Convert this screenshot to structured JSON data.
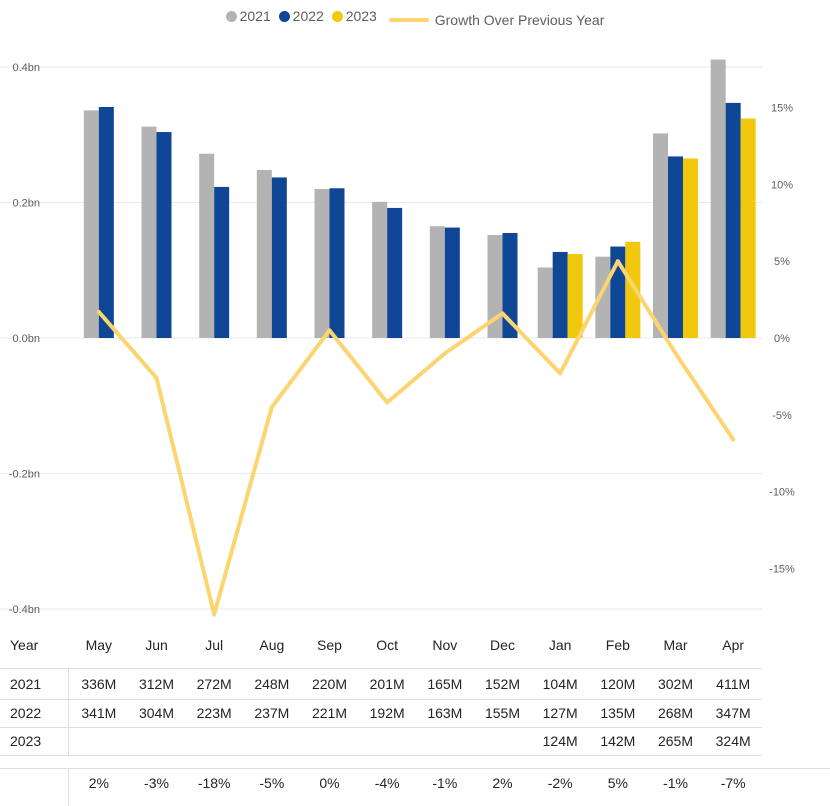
{
  "chart_data": {
    "type": "bar",
    "combo_line_series": "Growth Over Previous Year",
    "categories": [
      "May",
      "Jun",
      "Jul",
      "Aug",
      "Sep",
      "Oct",
      "Nov",
      "Dec",
      "Jan",
      "Feb",
      "Mar",
      "Apr"
    ],
    "series": [
      {
        "name": "2021",
        "color": "#b3b3b3",
        "values": [
          336,
          312,
          272,
          248,
          220,
          201,
          165,
          152,
          104,
          120,
          302,
          411
        ]
      },
      {
        "name": "2022",
        "color": "#0f4696",
        "values": [
          341,
          304,
          223,
          237,
          221,
          192,
          163,
          155,
          127,
          135,
          268,
          347
        ]
      },
      {
        "name": "2023",
        "color": "#f2c80f",
        "values": [
          null,
          null,
          null,
          null,
          null,
          null,
          null,
          null,
          124,
          142,
          265,
          324
        ]
      },
      {
        "name": "Growth Over Previous Year",
        "type": "line",
        "color": "#fcd470",
        "values": [
          1.7,
          -2.6,
          -18,
          -4.5,
          0.5,
          -4.2,
          -1.0,
          1.6,
          -2.3,
          5.0,
          -1.0,
          -6.6
        ]
      }
    ],
    "y_left": {
      "ticks": [
        "0.4bn",
        "0.2bn",
        "0.0bn",
        "-0.2bn",
        "-0.4bn"
      ],
      "values": [
        0.4,
        0.2,
        0.0,
        -0.2,
        -0.4
      ],
      "ylim": [
        -0.4,
        0.4
      ]
    },
    "y_right": {
      "ticks": [
        "15%",
        "10%",
        "5%",
        "0%",
        "-5%",
        "-10%",
        "-15%"
      ],
      "values": [
        15,
        10,
        5,
        0,
        -5,
        -10,
        -15
      ],
      "ylim": [
        -17.65,
        17.65
      ]
    },
    "legend_position": "top-center",
    "grid": true
  },
  "table": {
    "header_label": "Year",
    "rows": [
      {
        "label": "2021",
        "cells": [
          "336M",
          "312M",
          "272M",
          "248M",
          "220M",
          "201M",
          "165M",
          "152M",
          "104M",
          "120M",
          "302M",
          "411M"
        ]
      },
      {
        "label": "2022",
        "cells": [
          "341M",
          "304M",
          "223M",
          "237M",
          "221M",
          "192M",
          "163M",
          "155M",
          "127M",
          "135M",
          "268M",
          "347M"
        ]
      },
      {
        "label": "2023",
        "cells": [
          "",
          "",
          "",
          "",
          "",
          "",
          "",
          "",
          "124M",
          "142M",
          "265M",
          "324M"
        ]
      }
    ],
    "growth_row": [
      "2%",
      "-3%",
      "-18%",
      "-5%",
      "0%",
      "-4%",
      "-1%",
      "2%",
      "-2%",
      "5%",
      "-1%",
      "-7%"
    ]
  }
}
